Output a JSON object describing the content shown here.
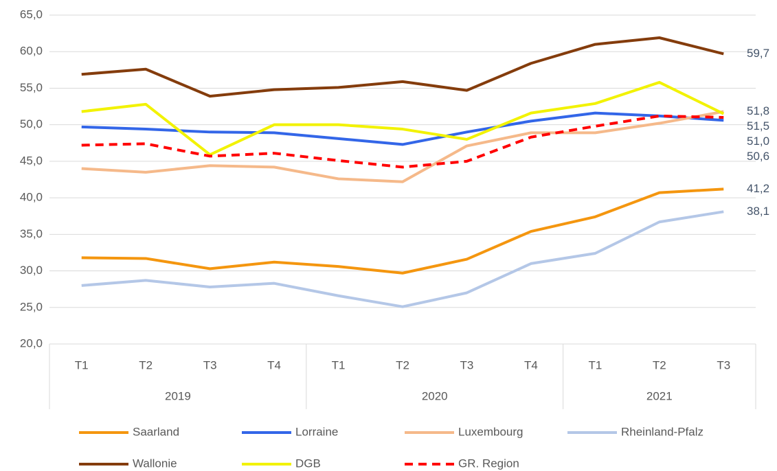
{
  "chart_data": {
    "type": "line",
    "category_groups": [
      {
        "name": "2019",
        "categories": [
          "T1",
          "T2",
          "T3",
          "T4"
        ]
      },
      {
        "name": "2020",
        "categories": [
          "T1",
          "T2",
          "T3",
          "T4"
        ]
      },
      {
        "name": "2021",
        "categories": [
          "T1",
          "T2",
          "T3"
        ]
      }
    ],
    "ylim": [
      20,
      65
    ],
    "yticks": [
      {
        "value": 20,
        "label": "20,0"
      },
      {
        "value": 25,
        "label": "25,0"
      },
      {
        "value": 30,
        "label": "30,0"
      },
      {
        "value": 35,
        "label": "35,0"
      },
      {
        "value": 40,
        "label": "40,0"
      },
      {
        "value": 45,
        "label": "45,0"
      },
      {
        "value": 50,
        "label": "50,0"
      },
      {
        "value": 55,
        "label": "55,0"
      },
      {
        "value": 60,
        "label": "60,0"
      },
      {
        "value": 65,
        "label": "65,0"
      }
    ],
    "grid": true,
    "legend": "bottom",
    "series": [
      {
        "name": "Saarland",
        "color": "#f4960f",
        "values": [
          31.8,
          31.7,
          30.3,
          31.2,
          30.6,
          29.7,
          31.6,
          35.4,
          37.4,
          40.7,
          41.2
        ],
        "value_labels": [
          null,
          null,
          null,
          null,
          null,
          null,
          null,
          null,
          null,
          null,
          "41,2"
        ]
      },
      {
        "name": "Lorraine",
        "color": "#3366e8",
        "values": [
          49.7,
          49.4,
          49.0,
          48.9,
          48.1,
          47.3,
          49.0,
          50.5,
          51.6,
          51.2,
          50.6
        ],
        "value_labels": [
          null,
          null,
          null,
          null,
          null,
          null,
          null,
          null,
          null,
          null,
          "50,6"
        ]
      },
      {
        "name": "Luxembourg",
        "color": "#f5b98a",
        "values": [
          44.0,
          43.5,
          44.4,
          44.2,
          42.6,
          42.2,
          47.1,
          48.9,
          48.9,
          50.2,
          51.8
        ],
        "value_labels": [
          null,
          null,
          null,
          null,
          null,
          null,
          null,
          null,
          null,
          null,
          "51,8"
        ]
      },
      {
        "name": "Rheinland-Pfalz",
        "color": "#b4c7e7",
        "values": [
          28.0,
          28.7,
          27.8,
          28.3,
          26.6,
          25.1,
          27.0,
          31.0,
          32.4,
          36.7,
          38.1
        ],
        "value_labels": [
          null,
          null,
          null,
          null,
          null,
          null,
          null,
          null,
          null,
          null,
          "38,1"
        ]
      },
      {
        "name": "Wallonie",
        "color": "#843c0c",
        "values": [
          56.9,
          57.6,
          53.9,
          54.8,
          55.1,
          55.9,
          54.7,
          58.4,
          61.0,
          61.9,
          59.7
        ],
        "value_labels": [
          null,
          null,
          null,
          null,
          null,
          null,
          null,
          null,
          null,
          null,
          "59,7"
        ]
      },
      {
        "name": "DGB",
        "color": "#f2f200",
        "values": [
          51.8,
          52.8,
          45.9,
          50.0,
          50.0,
          49.4,
          48.0,
          51.6,
          52.9,
          55.8,
          51.5
        ],
        "value_labels": [
          null,
          null,
          null,
          null,
          null,
          null,
          null,
          null,
          null,
          null,
          "51,5"
        ]
      },
      {
        "name": "GR. Region",
        "color": "#ff0000",
        "dashed": true,
        "values": [
          47.2,
          47.4,
          45.7,
          46.1,
          45.1,
          44.2,
          45.0,
          48.3,
          49.8,
          51.2,
          51.0
        ],
        "value_labels": [
          null,
          null,
          null,
          null,
          null,
          null,
          null,
          null,
          null,
          null,
          "51,0"
        ]
      }
    ]
  }
}
